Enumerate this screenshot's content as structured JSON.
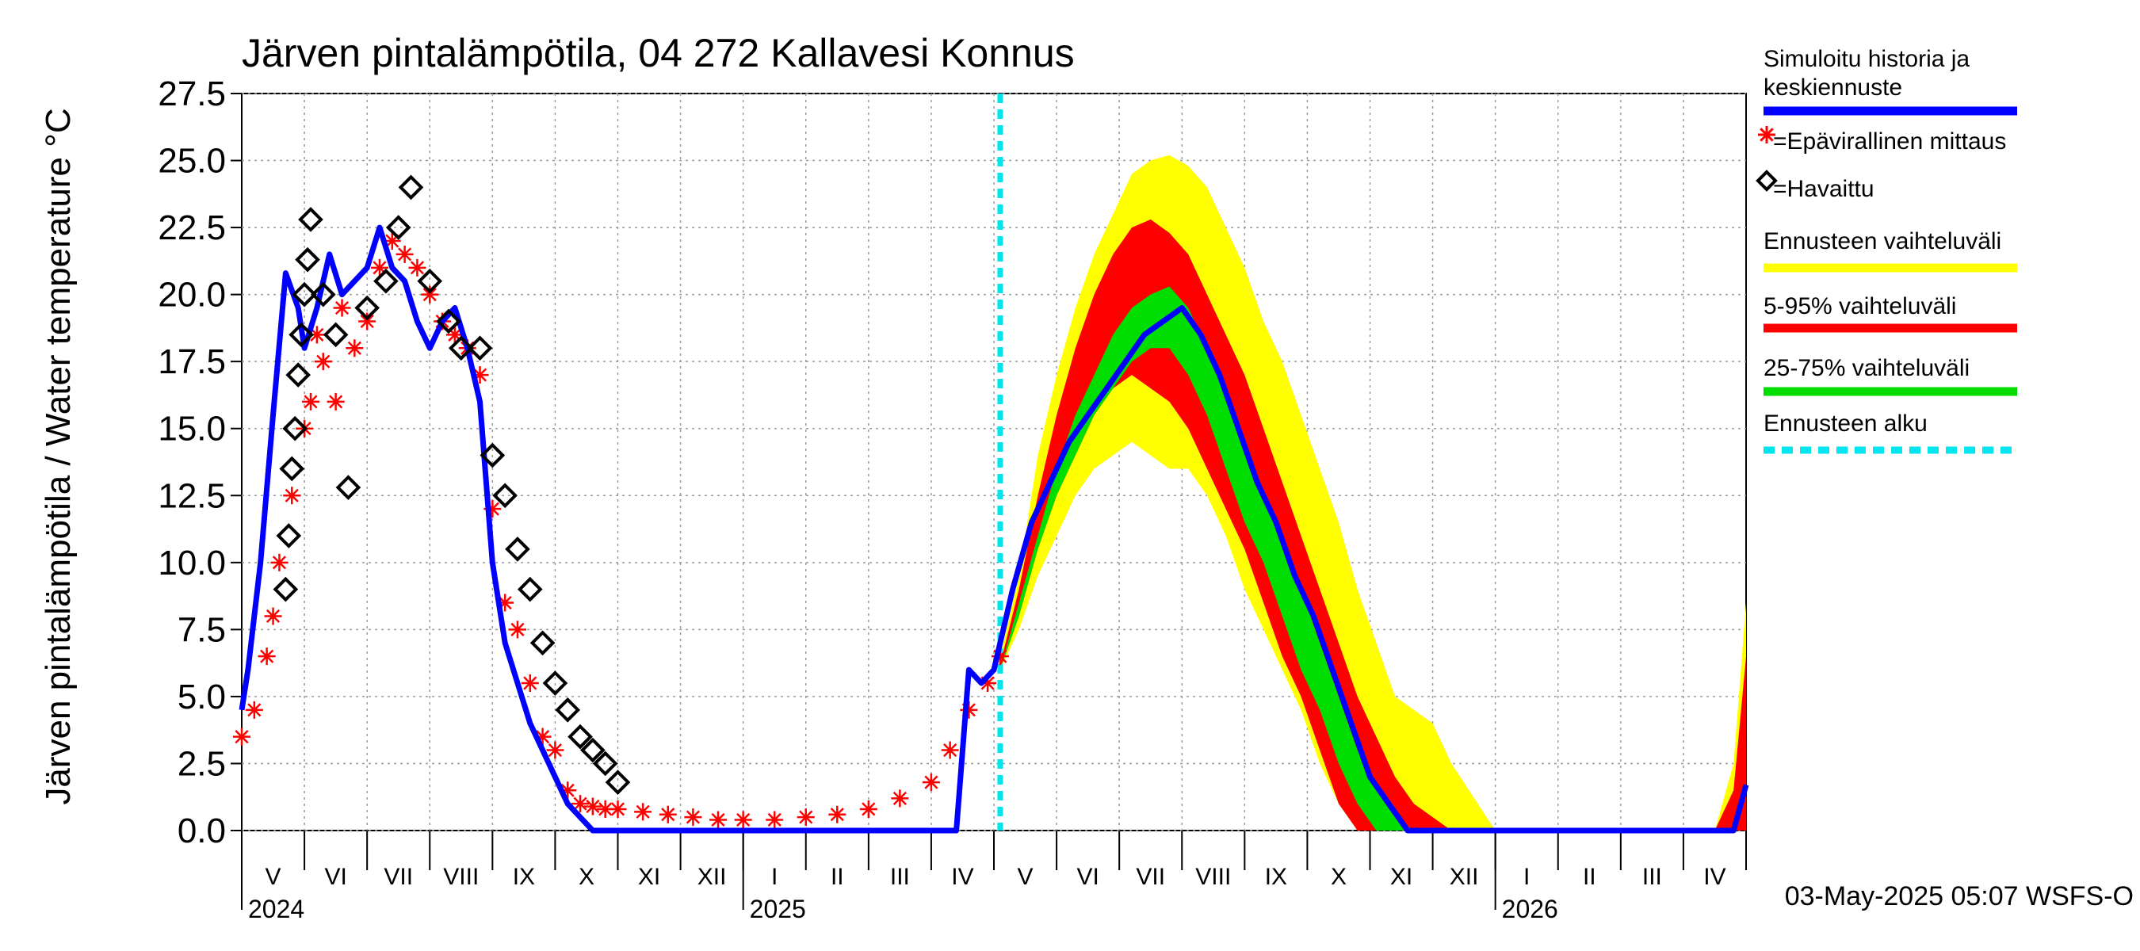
{
  "chart_data": {
    "type": "line",
    "title": "Järven pintalämpötila, 04 272 Kallavesi Konnus",
    "ylabel": "Järven pintalämpötila / Water temperature °C",
    "xlabel": "",
    "ylim": [
      0,
      27.5
    ],
    "yticks": [
      "0.0",
      "2.5",
      "5.0",
      "7.5",
      "10.0",
      "12.5",
      "15.0",
      "17.5",
      "20.0",
      "22.5",
      "25.0",
      "27.5"
    ],
    "grid": true,
    "legend_position": "right",
    "x_range_months": [
      0,
      24
    ],
    "x_units": "months since 2024-05-01",
    "month_labels": [
      "V",
      "VI",
      "VII",
      "VIII",
      "IX",
      "X",
      "XI",
      "XII",
      "I",
      "II",
      "III",
      "IV",
      "V",
      "VI",
      "VII",
      "VIII",
      "IX",
      "X",
      "XI",
      "XII",
      "I",
      "II",
      "III",
      "IV"
    ],
    "year_labels": [
      {
        "label": "2024",
        "month": 0
      },
      {
        "label": "2025",
        "month": 8
      },
      {
        "label": "2026",
        "month": 20
      }
    ],
    "forecast_start_month": 12.1,
    "footer": "03-May-2025 05:07 WSFS-O",
    "colors": {
      "simulated": "#0000ff",
      "unofficial": "#ff0000",
      "observed": "#000000",
      "range": "#ffff00",
      "p5_95": "#ff0000",
      "p25_75": "#00dd00",
      "forecast_start": "#00e5ee"
    },
    "legend": [
      {
        "label": "Simuloitu historia ja keskiennuste",
        "type": "line",
        "color": "#0000ff"
      },
      {
        "label": "=Epävirallinen mittaus",
        "type": "star",
        "color": "#ff0000"
      },
      {
        "label": "=Havaittu",
        "type": "diamond",
        "color": "#000000"
      },
      {
        "label": "Ennusteen vaihteluväli",
        "type": "line",
        "color": "#ffff00"
      },
      {
        "label": "5-95% vaihteluväli",
        "type": "line",
        "color": "#ff0000"
      },
      {
        "label": "25-75% vaihteluväli",
        "type": "line",
        "color": "#00dd00"
      },
      {
        "label": "Ennusteen alku",
        "type": "dash",
        "color": "#00e5ee"
      }
    ],
    "series": [
      {
        "name": "Simuloitu historia ja keskiennuste",
        "x": [
          0,
          0.1,
          0.3,
          0.5,
          0.7,
          0.9,
          1.0,
          1.2,
          1.4,
          1.6,
          1.8,
          2.0,
          2.2,
          2.4,
          2.6,
          2.8,
          3.0,
          3.2,
          3.4,
          3.6,
          3.8,
          4.0,
          4.2,
          4.4,
          4.6,
          4.8,
          5.0,
          5.2,
          5.4,
          5.6,
          5.8,
          6.0,
          6.2,
          6.4,
          6.6,
          6.8,
          7.0,
          8.0,
          9.0,
          10.0,
          11.0,
          11.4,
          11.6,
          11.8,
          12.0,
          12.3,
          12.6,
          12.9,
          13.2,
          13.5,
          13.8,
          14.1,
          14.4,
          14.7,
          15.0,
          15.3,
          15.6,
          15.9,
          16.2,
          16.5,
          16.8,
          17.1,
          17.4,
          17.7,
          18.0,
          18.3,
          18.6,
          19.0,
          20.0,
          21.0,
          22.0,
          23.0,
          23.8,
          24.0
        ],
        "y": [
          4.5,
          6.0,
          10,
          15.5,
          20.8,
          19.5,
          18.0,
          19.5,
          21.5,
          20.0,
          20.5,
          21.0,
          22.5,
          21.0,
          20.5,
          19.0,
          18.0,
          19.0,
          19.5,
          18.0,
          16.0,
          10.0,
          7.0,
          5.5,
          4.0,
          3.0,
          2.0,
          1.0,
          0.5,
          0,
          0,
          0,
          0,
          0,
          0,
          0,
          0,
          0,
          0,
          0,
          0,
          0,
          6.0,
          5.5,
          6.0,
          9.0,
          11.5,
          13.0,
          14.5,
          15.5,
          16.5,
          17.5,
          18.5,
          19.0,
          19.5,
          18.5,
          17.0,
          15.0,
          13.0,
          11.5,
          9.5,
          8.0,
          6.0,
          4.0,
          2.0,
          1.0,
          0,
          0,
          0,
          0,
          0,
          0,
          0,
          1.7
        ]
      },
      {
        "name": "=Epävirallinen mittaus",
        "x": [
          0,
          0.2,
          0.4,
          0.5,
          0.6,
          0.8,
          1.0,
          1.1,
          1.2,
          1.3,
          1.5,
          1.6,
          1.8,
          2.0,
          2.2,
          2.4,
          2.6,
          2.8,
          3.0,
          3.2,
          3.4,
          3.6,
          3.8,
          4.0,
          4.2,
          4.4,
          4.6,
          4.8,
          5.0,
          5.2,
          5.4,
          5.6,
          5.8,
          6.0,
          6.4,
          6.8,
          7.2,
          7.6,
          8.0,
          8.5,
          9.0,
          9.5,
          10.0,
          10.5,
          11.0,
          11.3,
          11.6,
          11.9,
          12.1
        ],
        "y": [
          3.5,
          4.5,
          6.5,
          8.0,
          10.0,
          12.5,
          15.0,
          16.0,
          18.5,
          17.5,
          16.0,
          19.5,
          18.0,
          19.0,
          21.0,
          22.0,
          21.5,
          21.0,
          20.0,
          19.0,
          18.5,
          18.0,
          17.0,
          12.0,
          8.5,
          7.5,
          5.5,
          3.5,
          3.0,
          1.5,
          1.0,
          0.9,
          0.8,
          0.8,
          0.7,
          0.6,
          0.5,
          0.4,
          0.4,
          0.4,
          0.5,
          0.6,
          0.8,
          1.2,
          1.8,
          3.0,
          4.5,
          5.5,
          6.5
        ]
      },
      {
        "name": "=Havaittu",
        "x": [
          0.7,
          0.75,
          0.8,
          0.85,
          0.9,
          0.95,
          1.0,
          1.05,
          1.1,
          1.3,
          1.5,
          1.7,
          2.0,
          2.3,
          2.5,
          2.7,
          3.0,
          3.3,
          3.5,
          3.8,
          4.0,
          4.2,
          4.4,
          4.6,
          4.8,
          5.0,
          5.2,
          5.4,
          5.6,
          5.8,
          6.0
        ],
        "y": [
          9.0,
          11.0,
          13.5,
          15.0,
          17.0,
          18.5,
          20.0,
          21.3,
          22.8,
          20.0,
          18.5,
          12.8,
          19.5,
          20.5,
          22.5,
          24.0,
          20.5,
          19.0,
          18.0,
          18.0,
          14.0,
          12.5,
          10.5,
          9.0,
          7.0,
          5.5,
          4.5,
          3.5,
          3.0,
          2.5,
          1.8
        ]
      },
      {
        "name": "Ennusteen vaihteluväli",
        "x": [
          12.1,
          12.4,
          12.7,
          13.0,
          13.3,
          13.6,
          13.9,
          14.2,
          14.5,
          14.8,
          15.1,
          15.4,
          15.7,
          16.0,
          16.3,
          16.6,
          16.9,
          17.2,
          17.5,
          17.8,
          18.1,
          18.4,
          18.7,
          19.0,
          19.3,
          20.0,
          21.0,
          22.0,
          23.5,
          23.8,
          24.0
        ],
        "upper": [
          6.5,
          9.5,
          14.0,
          17.0,
          19.5,
          21.5,
          23.0,
          24.5,
          25.0,
          25.2,
          24.8,
          24.0,
          22.5,
          21.0,
          19.0,
          17.5,
          15.5,
          13.5,
          11.5,
          9.0,
          7.0,
          5.0,
          4.5,
          4.0,
          2.5,
          0,
          0,
          0,
          0,
          2.5,
          8.5
        ],
        "lower": [
          6.0,
          7.5,
          9.5,
          11.0,
          12.5,
          13.5,
          14.0,
          14.5,
          14.0,
          13.5,
          13.5,
          12.5,
          11.0,
          9.0,
          7.5,
          6.0,
          4.5,
          2.5,
          1.0,
          0,
          0,
          0,
          0,
          0,
          0,
          0,
          0,
          0,
          0,
          0,
          0
        ]
      },
      {
        "name": "5-95% vaihteluväli",
        "x": [
          12.1,
          12.4,
          12.7,
          13.0,
          13.3,
          13.6,
          13.9,
          14.2,
          14.5,
          14.8,
          15.1,
          15.4,
          15.7,
          16.0,
          16.3,
          16.6,
          16.9,
          17.2,
          17.5,
          17.8,
          18.1,
          18.4,
          18.7,
          19.0,
          19.3,
          20.0,
          21.0,
          22.0,
          23.5,
          23.8,
          24.0
        ],
        "upper": [
          6.2,
          9.0,
          12.5,
          15.5,
          18.0,
          20.0,
          21.5,
          22.5,
          22.8,
          22.3,
          21.5,
          20.0,
          18.5,
          17.0,
          15.0,
          13.0,
          11.0,
          9.0,
          7.0,
          5.0,
          3.5,
          2.0,
          1.0,
          0.5,
          0,
          0,
          0,
          0,
          0,
          1.5,
          6.5
        ],
        "lower": [
          6.0,
          8.0,
          10.5,
          12.5,
          14.0,
          15.5,
          16.5,
          17.0,
          16.5,
          16.0,
          15.0,
          13.5,
          12.0,
          10.5,
          8.5,
          6.5,
          5.0,
          3.0,
          1.0,
          0,
          0,
          0,
          0,
          0,
          0,
          0,
          0,
          0,
          0,
          0,
          0
        ]
      },
      {
        "name": "25-75% vaihteluväli",
        "x": [
          12.1,
          12.4,
          12.7,
          13.0,
          13.3,
          13.6,
          13.9,
          14.2,
          14.5,
          14.8,
          15.1,
          15.4,
          15.7,
          16.0,
          16.3,
          16.6,
          16.9,
          17.2,
          17.5,
          17.8,
          18.1,
          18.4,
          18.7,
          19.0,
          19.3,
          20.0
        ],
        "upper": [
          6.0,
          8.5,
          11.0,
          13.5,
          15.5,
          17.0,
          18.5,
          19.5,
          20.0,
          20.3,
          19.5,
          18.0,
          16.5,
          14.5,
          12.5,
          11.0,
          9.0,
          7.0,
          5.0,
          3.0,
          1.5,
          0.5,
          0,
          0,
          0,
          0
        ],
        "lower": [
          6.0,
          8.0,
          10.5,
          12.5,
          14.0,
          15.5,
          16.5,
          17.5,
          18.0,
          18.0,
          17.0,
          15.5,
          13.5,
          11.5,
          10.0,
          8.0,
          6.0,
          4.5,
          2.5,
          1.0,
          0,
          0,
          0,
          0,
          0,
          0
        ]
      }
    ]
  }
}
